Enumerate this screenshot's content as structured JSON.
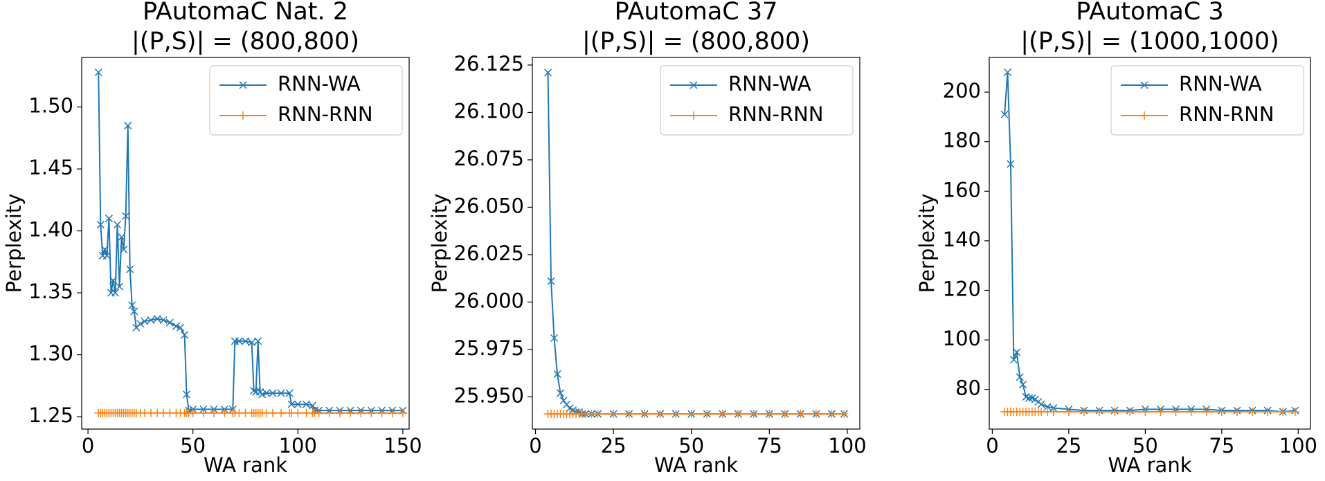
{
  "chart_data": [
    {
      "type": "line",
      "title": "PAutomaC Nat. 2",
      "subtitle": "|(P,S)| = (800,800)",
      "x_label": "WA rank",
      "y_label": "Perplexity",
      "legend": "upper right",
      "xlim": [
        -3,
        153
      ],
      "xticks": [
        0,
        50,
        100,
        150
      ],
      "ylim": [
        1.24,
        1.54
      ],
      "yticks": [
        1.25,
        {
          "value": 1.3,
          "label": "1.30"
        },
        1.35,
        {
          "value": 1.4,
          "label": "1.40"
        },
        1.45,
        {
          "value": 1.5,
          "label": "1.50"
        }
      ],
      "x": [
        5,
        6,
        7,
        8,
        9,
        10,
        11,
        12,
        13,
        14,
        15,
        16,
        17,
        18,
        19,
        20,
        21,
        22,
        23,
        25,
        27,
        30,
        33,
        36,
        39,
        42,
        44,
        46,
        47,
        48,
        50,
        55,
        60,
        65,
        69,
        70,
        72,
        75,
        78,
        79,
        80,
        81,
        82,
        83,
        85,
        88,
        92,
        96,
        97,
        100,
        104,
        107,
        108,
        110,
        115,
        120,
        125,
        130,
        135,
        140,
        145,
        150
      ],
      "series": [
        {
          "name": "RNN-WA",
          "color": "#1f77b4",
          "marker": "x",
          "values": [
            1.528,
            1.405,
            1.38,
            1.385,
            1.38,
            1.41,
            1.35,
            1.36,
            1.35,
            1.405,
            1.355,
            1.395,
            1.385,
            1.412,
            1.485,
            1.369,
            1.34,
            1.335,
            1.322,
            1.325,
            1.327,
            1.328,
            1.329,
            1.328,
            1.326,
            1.323,
            1.322,
            1.316,
            1.268,
            1.255,
            1.256,
            1.256,
            1.256,
            1.256,
            1.256,
            1.311,
            1.311,
            1.311,
            1.31,
            1.271,
            1.27,
            1.311,
            1.27,
            1.268,
            1.269,
            1.269,
            1.269,
            1.269,
            1.26,
            1.26,
            1.26,
            1.259,
            1.255,
            1.255,
            1.255,
            1.255,
            1.255,
            1.255,
            1.255,
            1.255,
            1.255,
            1.255
          ]
        },
        {
          "name": "RNN-RNN",
          "color": "#ff7f0e",
          "marker": "+",
          "values": [
            1.253,
            1.253,
            1.253,
            1.253,
            1.253,
            1.253,
            1.253,
            1.253,
            1.253,
            1.253,
            1.253,
            1.253,
            1.253,
            1.253,
            1.253,
            1.253,
            1.253,
            1.253,
            1.253,
            1.253,
            1.253,
            1.253,
            1.253,
            1.253,
            1.253,
            1.253,
            1.253,
            1.253,
            1.253,
            1.253,
            1.253,
            1.253,
            1.253,
            1.253,
            1.253,
            1.253,
            1.253,
            1.253,
            1.253,
            1.253,
            1.253,
            1.253,
            1.253,
            1.253,
            1.253,
            1.253,
            1.253,
            1.253,
            1.253,
            1.253,
            1.253,
            1.253,
            1.253,
            1.253,
            1.253,
            1.253,
            1.253,
            1.253,
            1.253,
            1.253,
            1.253,
            1.253
          ]
        }
      ]
    },
    {
      "type": "line",
      "title": "PAutomaC 37",
      "subtitle": "|(P,S)| = (800,800)",
      "x_label": "WA rank",
      "y_label": "Perplexity",
      "legend": "upper right",
      "xlim": [
        -1,
        104
      ],
      "xticks": [
        0,
        25,
        50,
        75,
        100
      ],
      "ylim": [
        25.933,
        26.129
      ],
      "yticks": [
        {
          "value": 25.95,
          "label": "25.950"
        },
        25.975,
        {
          "value": 26,
          "label": "26.000"
        },
        26.025,
        {
          "value": 26.05,
          "label": "26.050"
        },
        26.075,
        {
          "value": 26.1,
          "label": "26.100"
        },
        26.125
      ],
      "x": [
        4,
        5,
        6,
        7,
        8,
        9,
        10,
        11,
        12,
        13,
        14,
        15,
        16,
        18,
        20,
        25,
        30,
        35,
        40,
        45,
        50,
        55,
        60,
        65,
        70,
        75,
        80,
        85,
        90,
        95,
        99
      ],
      "series": [
        {
          "name": "RNN-WA",
          "color": "#1f77b4",
          "marker": "x",
          "values": [
            26.121,
            26.011,
            25.981,
            25.962,
            25.952,
            25.948,
            25.946,
            25.944,
            25.943,
            25.942,
            25.942,
            25.941,
            25.941,
            25.941,
            25.941,
            25.941,
            25.941,
            25.941,
            25.941,
            25.941,
            25.941,
            25.941,
            25.941,
            25.941,
            25.941,
            25.941,
            25.941,
            25.941,
            25.941,
            25.941,
            25.941
          ]
        },
        {
          "name": "RNN-RNN",
          "color": "#ff7f0e",
          "marker": "+",
          "values": [
            25.941,
            25.941,
            25.941,
            25.941,
            25.941,
            25.941,
            25.941,
            25.941,
            25.941,
            25.941,
            25.941,
            25.941,
            25.941,
            25.941,
            25.941,
            25.941,
            25.941,
            25.941,
            25.941,
            25.941,
            25.941,
            25.941,
            25.941,
            25.941,
            25.941,
            25.941,
            25.941,
            25.941,
            25.941,
            25.941,
            25.941
          ]
        }
      ]
    },
    {
      "type": "line",
      "title": "PAutomaC 3",
      "subtitle": "|(P,S)| = (1000,1000)",
      "x_label": "WA rank",
      "y_label": "Perplexity",
      "legend": "upper right",
      "xlim": [
        -1,
        104
      ],
      "xticks": [
        0,
        25,
        50,
        75,
        100
      ],
      "ylim": [
        64,
        214
      ],
      "yticks": [
        80,
        100,
        120,
        140,
        160,
        180,
        200
      ],
      "x": [
        4,
        5,
        6,
        7,
        8,
        9,
        10,
        11,
        12,
        13,
        14,
        15,
        16,
        18,
        20,
        25,
        30,
        35,
        40,
        45,
        50,
        55,
        60,
        65,
        70,
        75,
        80,
        85,
        90,
        95,
        99
      ],
      "series": [
        {
          "name": "RNN-WA",
          "color": "#1f77b4",
          "marker": "x",
          "values": [
            191,
            208,
            171,
            92,
            95,
            85,
            82,
            77,
            76.5,
            76.5,
            76,
            75,
            74,
            73,
            72.5,
            72,
            71.5,
            71.5,
            71.5,
            71.5,
            72,
            72,
            72,
            72,
            72,
            71.5,
            71.5,
            71.5,
            71.5,
            71,
            71.5
          ]
        },
        {
          "name": "RNN-RNN",
          "color": "#ff7f0e",
          "marker": "+",
          "values": [
            71,
            71,
            71,
            71,
            71,
            71,
            71,
            71,
            71,
            71,
            71,
            71,
            71,
            71,
            71,
            71,
            71,
            71,
            71,
            71,
            71,
            71,
            71,
            71,
            71,
            71,
            71,
            71,
            71,
            71,
            71
          ]
        }
      ]
    }
  ]
}
